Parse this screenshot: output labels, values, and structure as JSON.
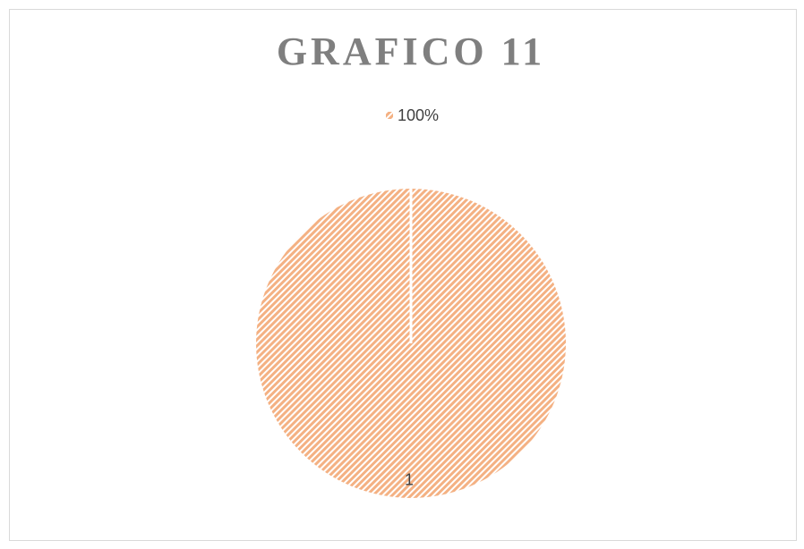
{
  "chart_data": {
    "type": "pie",
    "title": "GRAFICO 11",
    "categories": [
      "100%"
    ],
    "values": [
      1
    ],
    "colors": [
      "#f4b183"
    ],
    "legend": "top"
  }
}
